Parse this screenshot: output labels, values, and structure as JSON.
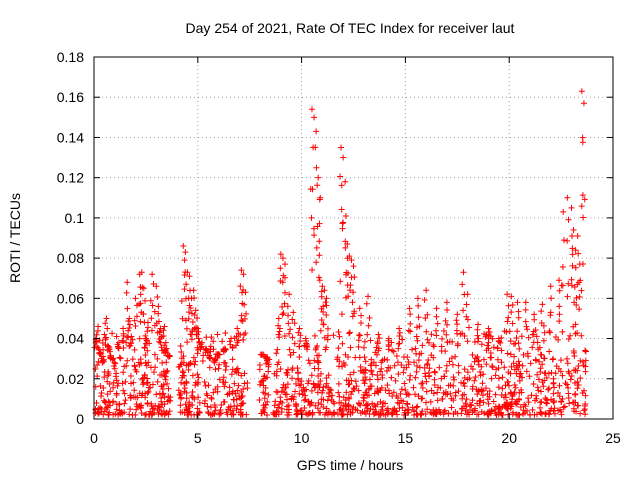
{
  "chart_data": {
    "type": "scatter",
    "title": "Day 254 of 2021, Rate Of TEC Index for receiver laut",
    "xlabel": "GPS time / hours",
    "ylabel": "ROTI / TECUs",
    "xlim": [
      0,
      25
    ],
    "ylim": [
      0,
      0.18
    ],
    "xticks": [
      0,
      5,
      10,
      15,
      20,
      25
    ],
    "yticks": [
      0,
      0.02,
      0.04,
      0.06,
      0.08,
      0.1,
      0.12,
      0.14,
      0.16,
      0.18
    ],
    "xtick_labels": [
      "0",
      "5",
      "10",
      "15",
      "20",
      "25"
    ],
    "ytick_labels": [
      "0",
      "0.02",
      "0.04",
      "0.06",
      "0.08",
      "0.1",
      "0.12",
      "0.14",
      "0.16",
      "0.18"
    ],
    "grid": true,
    "marker": "plus",
    "color": "#ff0000",
    "series": [
      {
        "x": [
          0.1,
          0.2,
          0.3,
          0.4,
          0.5,
          0.6,
          0.7,
          0.8,
          1.0,
          1.2,
          1.4,
          1.6,
          1.7,
          1.8,
          2.0,
          2.2,
          2.3,
          2.4,
          2.5,
          2.6,
          2.8,
          3.0,
          3.1,
          3.2,
          3.4,
          3.5,
          3.6,
          4.3,
          4.4,
          4.5,
          4.6,
          4.7,
          4.8,
          4.9,
          5.0,
          5.2,
          5.4,
          5.6,
          5.8,
          6.0,
          6.3,
          6.6,
          6.9,
          7.1,
          7.2,
          7.3,
          8.1,
          8.3,
          8.4,
          8.9,
          9.0,
          9.1,
          9.2,
          9.4,
          9.6,
          9.9,
          10.2,
          10.5,
          10.6,
          10.7,
          10.8,
          10.9,
          11.0,
          11.1,
          11.2,
          11.9,
          12.0,
          12.1,
          12.2,
          12.3,
          12.4,
          12.5,
          12.8,
          13.2,
          13.7,
          14.2,
          14.7,
          15.2,
          15.6,
          16.0,
          16.5,
          17.0,
          17.5,
          17.8,
          18.0,
          18.5,
          19.0,
          19.5,
          19.9,
          20.1,
          20.4,
          20.8,
          21.2,
          21.6,
          22.0,
          22.4,
          22.6,
          22.8,
          23.0,
          23.1,
          23.2,
          23.3,
          23.4,
          23.5,
          23.6
        ],
        "y": [
          0.04,
          0.046,
          0.033,
          0.028,
          0.042,
          0.05,
          0.036,
          0.03,
          0.025,
          0.038,
          0.045,
          0.068,
          0.05,
          0.041,
          0.06,
          0.072,
          0.073,
          0.065,
          0.04,
          0.048,
          0.072,
          0.066,
          0.056,
          0.045,
          0.046,
          0.035,
          0.031,
          0.086,
          0.083,
          0.073,
          0.071,
          0.06,
          0.064,
          0.054,
          0.045,
          0.038,
          0.035,
          0.03,
          0.028,
          0.032,
          0.035,
          0.04,
          0.045,
          0.074,
          0.072,
          0.063,
          0.032,
          0.03,
          0.026,
          0.05,
          0.082,
          0.08,
          0.077,
          0.062,
          0.053,
          0.045,
          0.04,
          0.154,
          0.15,
          0.143,
          0.12,
          0.11,
          0.066,
          0.064,
          0.06,
          0.135,
          0.13,
          0.118,
          0.087,
          0.081,
          0.079,
          0.076,
          0.055,
          0.061,
          0.042,
          0.04,
          0.045,
          0.055,
          0.06,
          0.064,
          0.055,
          0.058,
          0.052,
          0.073,
          0.062,
          0.047,
          0.045,
          0.04,
          0.062,
          0.061,
          0.058,
          0.058,
          0.052,
          0.057,
          0.066,
          0.069,
          0.103,
          0.11,
          0.105,
          0.094,
          0.084,
          0.091,
          0.077,
          0.163,
          0.157
        ],
        "band": {
          "segments": [
            [
              0.05,
              3.7
            ],
            [
              4.05,
              7.4
            ],
            [
              7.9,
              8.4
            ],
            [
              8.6,
              11.6
            ],
            [
              11.7,
              23.7
            ]
          ],
          "ymin": 0.002,
          "ymax": 0.032,
          "density": 1400
        }
      }
    ]
  }
}
